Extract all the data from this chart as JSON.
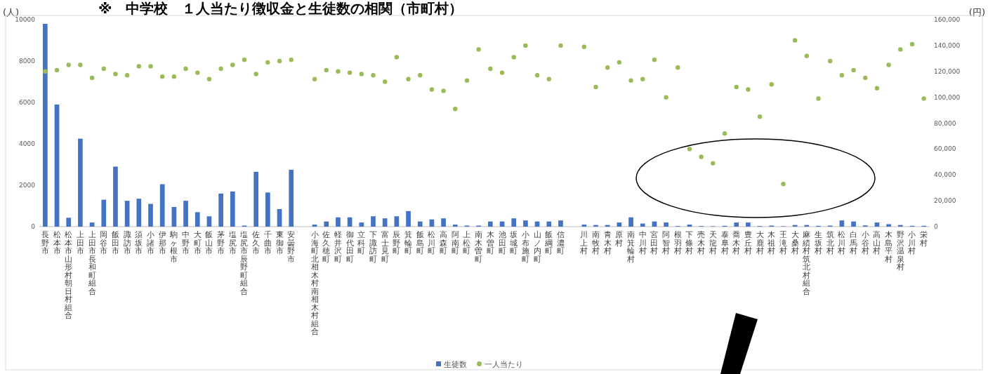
{
  "chart_data": {
    "type": "bar",
    "title": "※　中学校　１人当たり徴収金と生徒数の相関（市町村）",
    "ylabel": "(人)",
    "y2label": "(円)",
    "categories": [
      "長野市",
      "松本市",
      "松本市山形村朝日村組合",
      "上田市",
      "上田市長和町組合",
      "岡谷市",
      "飯田市",
      "諏訪市",
      "須坂市",
      "小諸市",
      "伊那市",
      "駒ヶ根市",
      "中野市",
      "大町市",
      "飯山市",
      "茅野市",
      "塩尻市",
      "塩尻市辰野町組合",
      "佐久市",
      "千曲市",
      "東御市",
      "安曇野市",
      null,
      "小海町北相木村南相木村組合",
      "佐久穂町",
      "軽井沢町",
      "御代田町",
      "立科町",
      "下諏訪町",
      "富士見町",
      "辰野町",
      "箕輪町",
      "飯島町",
      "松川町",
      "高森町",
      "阿南町",
      "上松町",
      "南木曽町",
      "木曽町",
      "池田町",
      "坂城町",
      "小布施町",
      "山ノ内町",
      "飯綱町",
      "信濃町",
      null,
      "川上村",
      "南牧村",
      "青木村",
      "原村",
      "南箕輪村",
      "中川村",
      "宮田村",
      "阿智村",
      "根羽村",
      "下條村",
      "売木村",
      "天龍村",
      "泰阜村",
      "喬木村",
      "豊丘村",
      "大鹿村",
      "木祖村",
      "王滝村",
      "大桑村",
      "麻績村筑北村組合",
      "生坂村",
      "筑北村",
      "松川村",
      "白馬村",
      "小谷村",
      "高山村",
      "木島平村",
      "野沢温泉村",
      "小川村",
      "栄村"
    ],
    "series": [
      {
        "name": "生徒数",
        "color": "#4472c4",
        "values": [
          9800,
          5900,
          430,
          4250,
          200,
          1300,
          2900,
          1250,
          1350,
          1100,
          2050,
          950,
          1250,
          700,
          500,
          1600,
          1700,
          50,
          2650,
          1650,
          850,
          2750,
          null,
          100,
          250,
          450,
          450,
          200,
          500,
          400,
          500,
          750,
          250,
          350,
          400,
          100,
          50,
          50,
          250,
          250,
          400,
          300,
          250,
          250,
          300,
          null,
          100,
          80,
          80,
          200,
          450,
          150,
          250,
          200,
          30,
          100,
          30,
          20,
          40,
          200,
          200,
          30,
          50,
          20,
          80,
          80,
          40,
          50,
          300,
          250,
          60,
          200,
          120,
          80,
          40,
          40
        ]
      },
      {
        "name": "一人当たり",
        "type": "scatter",
        "axis": "y2",
        "color": "#9bbb59",
        "values": [
          120000,
          121000,
          125000,
          125000,
          115000,
          122000,
          118000,
          117000,
          124000,
          124000,
          116000,
          116000,
          122000,
          119000,
          114000,
          122000,
          125000,
          129000,
          118000,
          127000,
          128000,
          129000,
          null,
          114000,
          121000,
          120000,
          119000,
          118000,
          117000,
          112000,
          131000,
          114000,
          117000,
          106000,
          105000,
          91000,
          113000,
          137000,
          122000,
          119000,
          131000,
          140000,
          117000,
          114000,
          140000,
          null,
          139000,
          108000,
          123000,
          127000,
          113000,
          114000,
          129000,
          100000,
          123000,
          60000,
          54000,
          49000,
          72000,
          108000,
          106000,
          85000,
          110000,
          33000,
          144000,
          132000,
          99000,
          128000,
          117000,
          121000,
          115000,
          107000,
          125000,
          137000,
          141000,
          99000
        ]
      }
    ],
    "ylim": [
      0,
      10000
    ],
    "yticks": [
      0,
      2000,
      4000,
      6000,
      8000,
      10000
    ],
    "y2lim": [
      0,
      160000
    ],
    "y2ticks": [
      0,
      {
        "value": 20000,
        "label": "20,000"
      },
      {
        "value": 40000,
        "label": "40,000"
      },
      {
        "value": 60000,
        "label": "60,000"
      },
      {
        "value": 80000,
        "label": "80,000"
      },
      {
        "value": 100000,
        "label": "100,000"
      },
      {
        "value": 120000,
        "label": "120,000"
      },
      {
        "value": 140000,
        "label": "140,000"
      },
      {
        "value": 160000,
        "label": "160,000"
      }
    ],
    "legend": "bottom"
  }
}
